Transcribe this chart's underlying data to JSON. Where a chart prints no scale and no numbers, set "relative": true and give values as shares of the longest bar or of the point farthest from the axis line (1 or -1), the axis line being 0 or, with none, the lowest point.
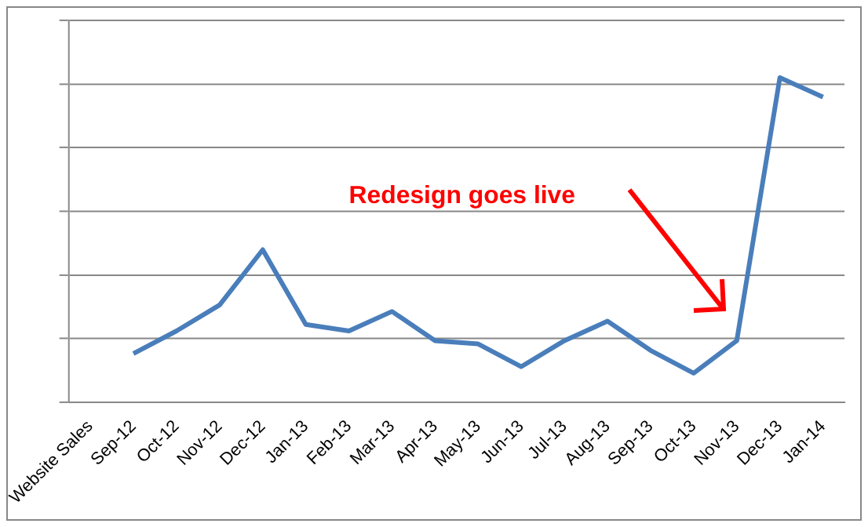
{
  "chart_data": {
    "type": "line",
    "relative": true,
    "grid": "y",
    "marker": "none",
    "categories": [
      "Website Sales",
      "Sep-12",
      "Oct-12",
      "Nov-12",
      "Dec-12",
      "Jan-13",
      "Feb-13",
      "Mar-13",
      "Apr-13",
      "May-13",
      "Jun-13",
      "Jul-13",
      "Aug-13",
      "Sep-13",
      "Oct-13",
      "Nov-13",
      "Dec-13",
      "Jan-14"
    ],
    "series": [
      {
        "color": "#4a7ebb",
        "values": [
          null,
          0.15,
          0.22,
          0.3,
          0.47,
          0.24,
          0.22,
          0.28,
          0.19,
          0.18,
          0.11,
          0.19,
          0.25,
          0.16,
          0.09,
          0.19,
          1,
          0.94
        ]
      }
    ],
    "annotations": [
      "Redesign goes live"
    ]
  }
}
